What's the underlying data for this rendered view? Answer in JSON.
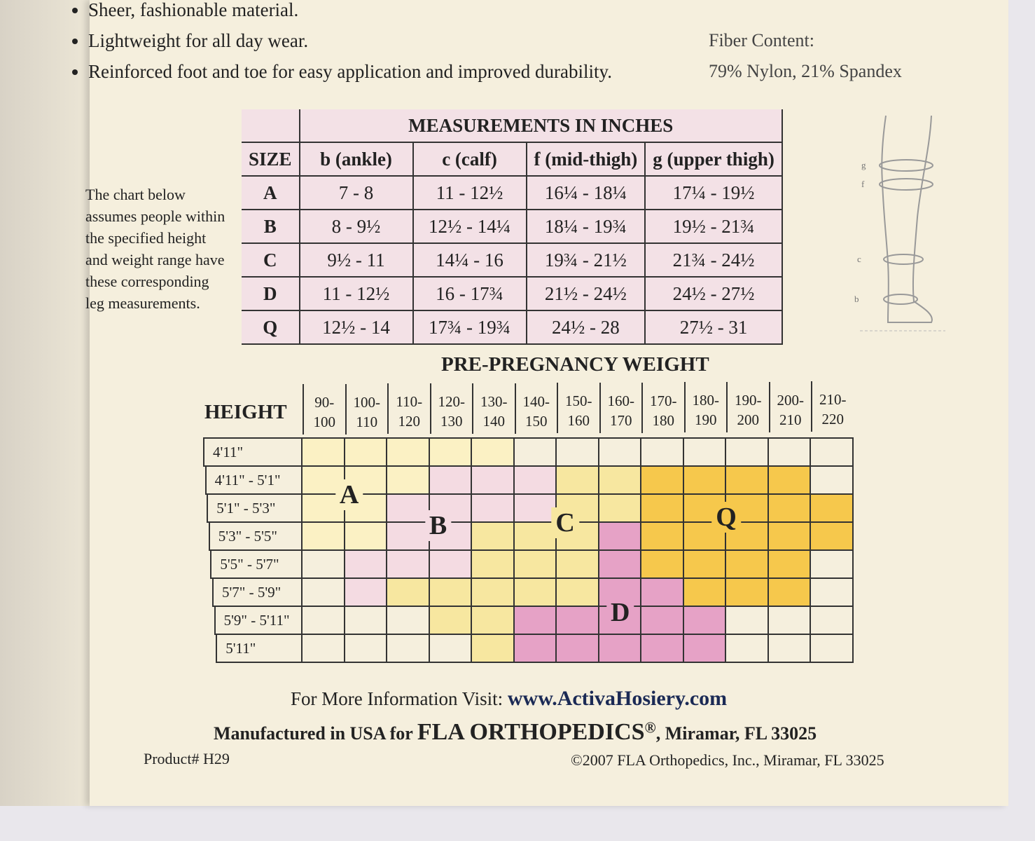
{
  "bullets": [
    "Sheer, fashionable material.",
    "Lightweight for all day wear.",
    "Reinforced foot and toe for easy application and improved durability."
  ],
  "fiber": {
    "label": "Fiber Content:",
    "value": "79% Nylon, 21% Spandex"
  },
  "measurements": {
    "title": "MEASUREMENTS IN INCHES",
    "header": [
      "SIZE",
      "b (ankle)",
      "c (calf)",
      "f (mid-thigh)",
      "g (upper thigh)"
    ],
    "rows": [
      [
        "A",
        "7 - 8",
        "11 - 12½",
        "16¼ - 18¼",
        "17¼ - 19½"
      ],
      [
        "B",
        "8 - 9½",
        "12½ - 14¼",
        "18¼ - 19¾",
        "19½ - 21¾"
      ],
      [
        "C",
        "9½ - 11",
        "14¼ - 16",
        "19¾ - 21½",
        "21¾ - 24½"
      ],
      [
        "D",
        "11 - 12½",
        "16 - 17¾",
        "21½ - 24½",
        "24½ - 27½"
      ],
      [
        "Q",
        "12½ - 14",
        "17¾ - 19¾",
        "24½ - 28",
        "27½ - 31"
      ]
    ]
  },
  "note": "The chart below assumes people within the specified height and weight range have these corresponding leg measurements.",
  "leg_labels": [
    "g",
    "f",
    "c",
    "b"
  ],
  "weight_chart": {
    "title": "PRE-PREGNANCY WEIGHT",
    "row_header": "HEIGHT",
    "weights": [
      "90-\n100",
      "100-\n110",
      "110-\n120",
      "120-\n130",
      "130-\n140",
      "140-\n150",
      "150-\n160",
      "160-\n170",
      "170-\n180",
      "180-\n190",
      "190-\n200",
      "200-\n210",
      "210-\n220"
    ],
    "heights": [
      "4'11\"",
      "4'11\" - 5'1\"",
      "5'1\" - 5'3\"",
      "5'3\" - 5'5\"",
      "5'5\" - 5'7\"",
      "5'7\" - 5'9\"",
      "5'9\" - 5'11\"",
      "5'11\""
    ],
    "zones": [
      "A",
      "B",
      "C",
      "Q",
      "D"
    ]
  },
  "footer": {
    "info": "For More Information Visit:",
    "url": "www.ActivaHosiery.com",
    "made": "Manufactured in USA for",
    "company": "FLA ORTHOPEDICS",
    "reg": "®",
    "location": ", Miramar, FL 33025",
    "product": "Product# H29",
    "copyright": "©2007 FLA Orthopedics, Inc., Miramar, FL 33025"
  }
}
